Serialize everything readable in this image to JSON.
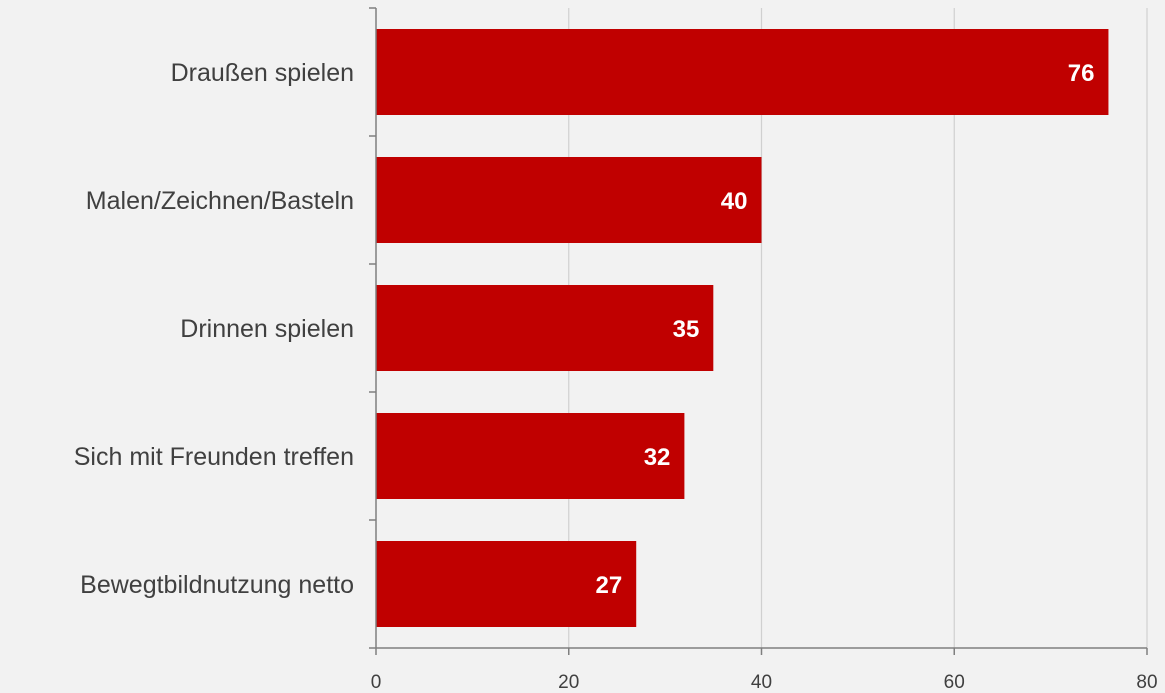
{
  "chart_data": {
    "type": "bar",
    "orientation": "horizontal",
    "categories": [
      "Draußen spielen",
      "Malen/Zeichnen/Basteln",
      "Drinnen spielen",
      "Sich mit Freunden treffen",
      "Bewegtbildnutzung netto"
    ],
    "values": [
      76,
      40,
      35,
      32,
      27
    ],
    "xlim": [
      0,
      80
    ],
    "xticks": [
      0,
      20,
      40,
      60,
      80
    ],
    "grid": true,
    "data_labels": true,
    "bar_color": "#c00000",
    "background_color": "#f2f2f2",
    "title": "",
    "xlabel": "",
    "ylabel": ""
  }
}
